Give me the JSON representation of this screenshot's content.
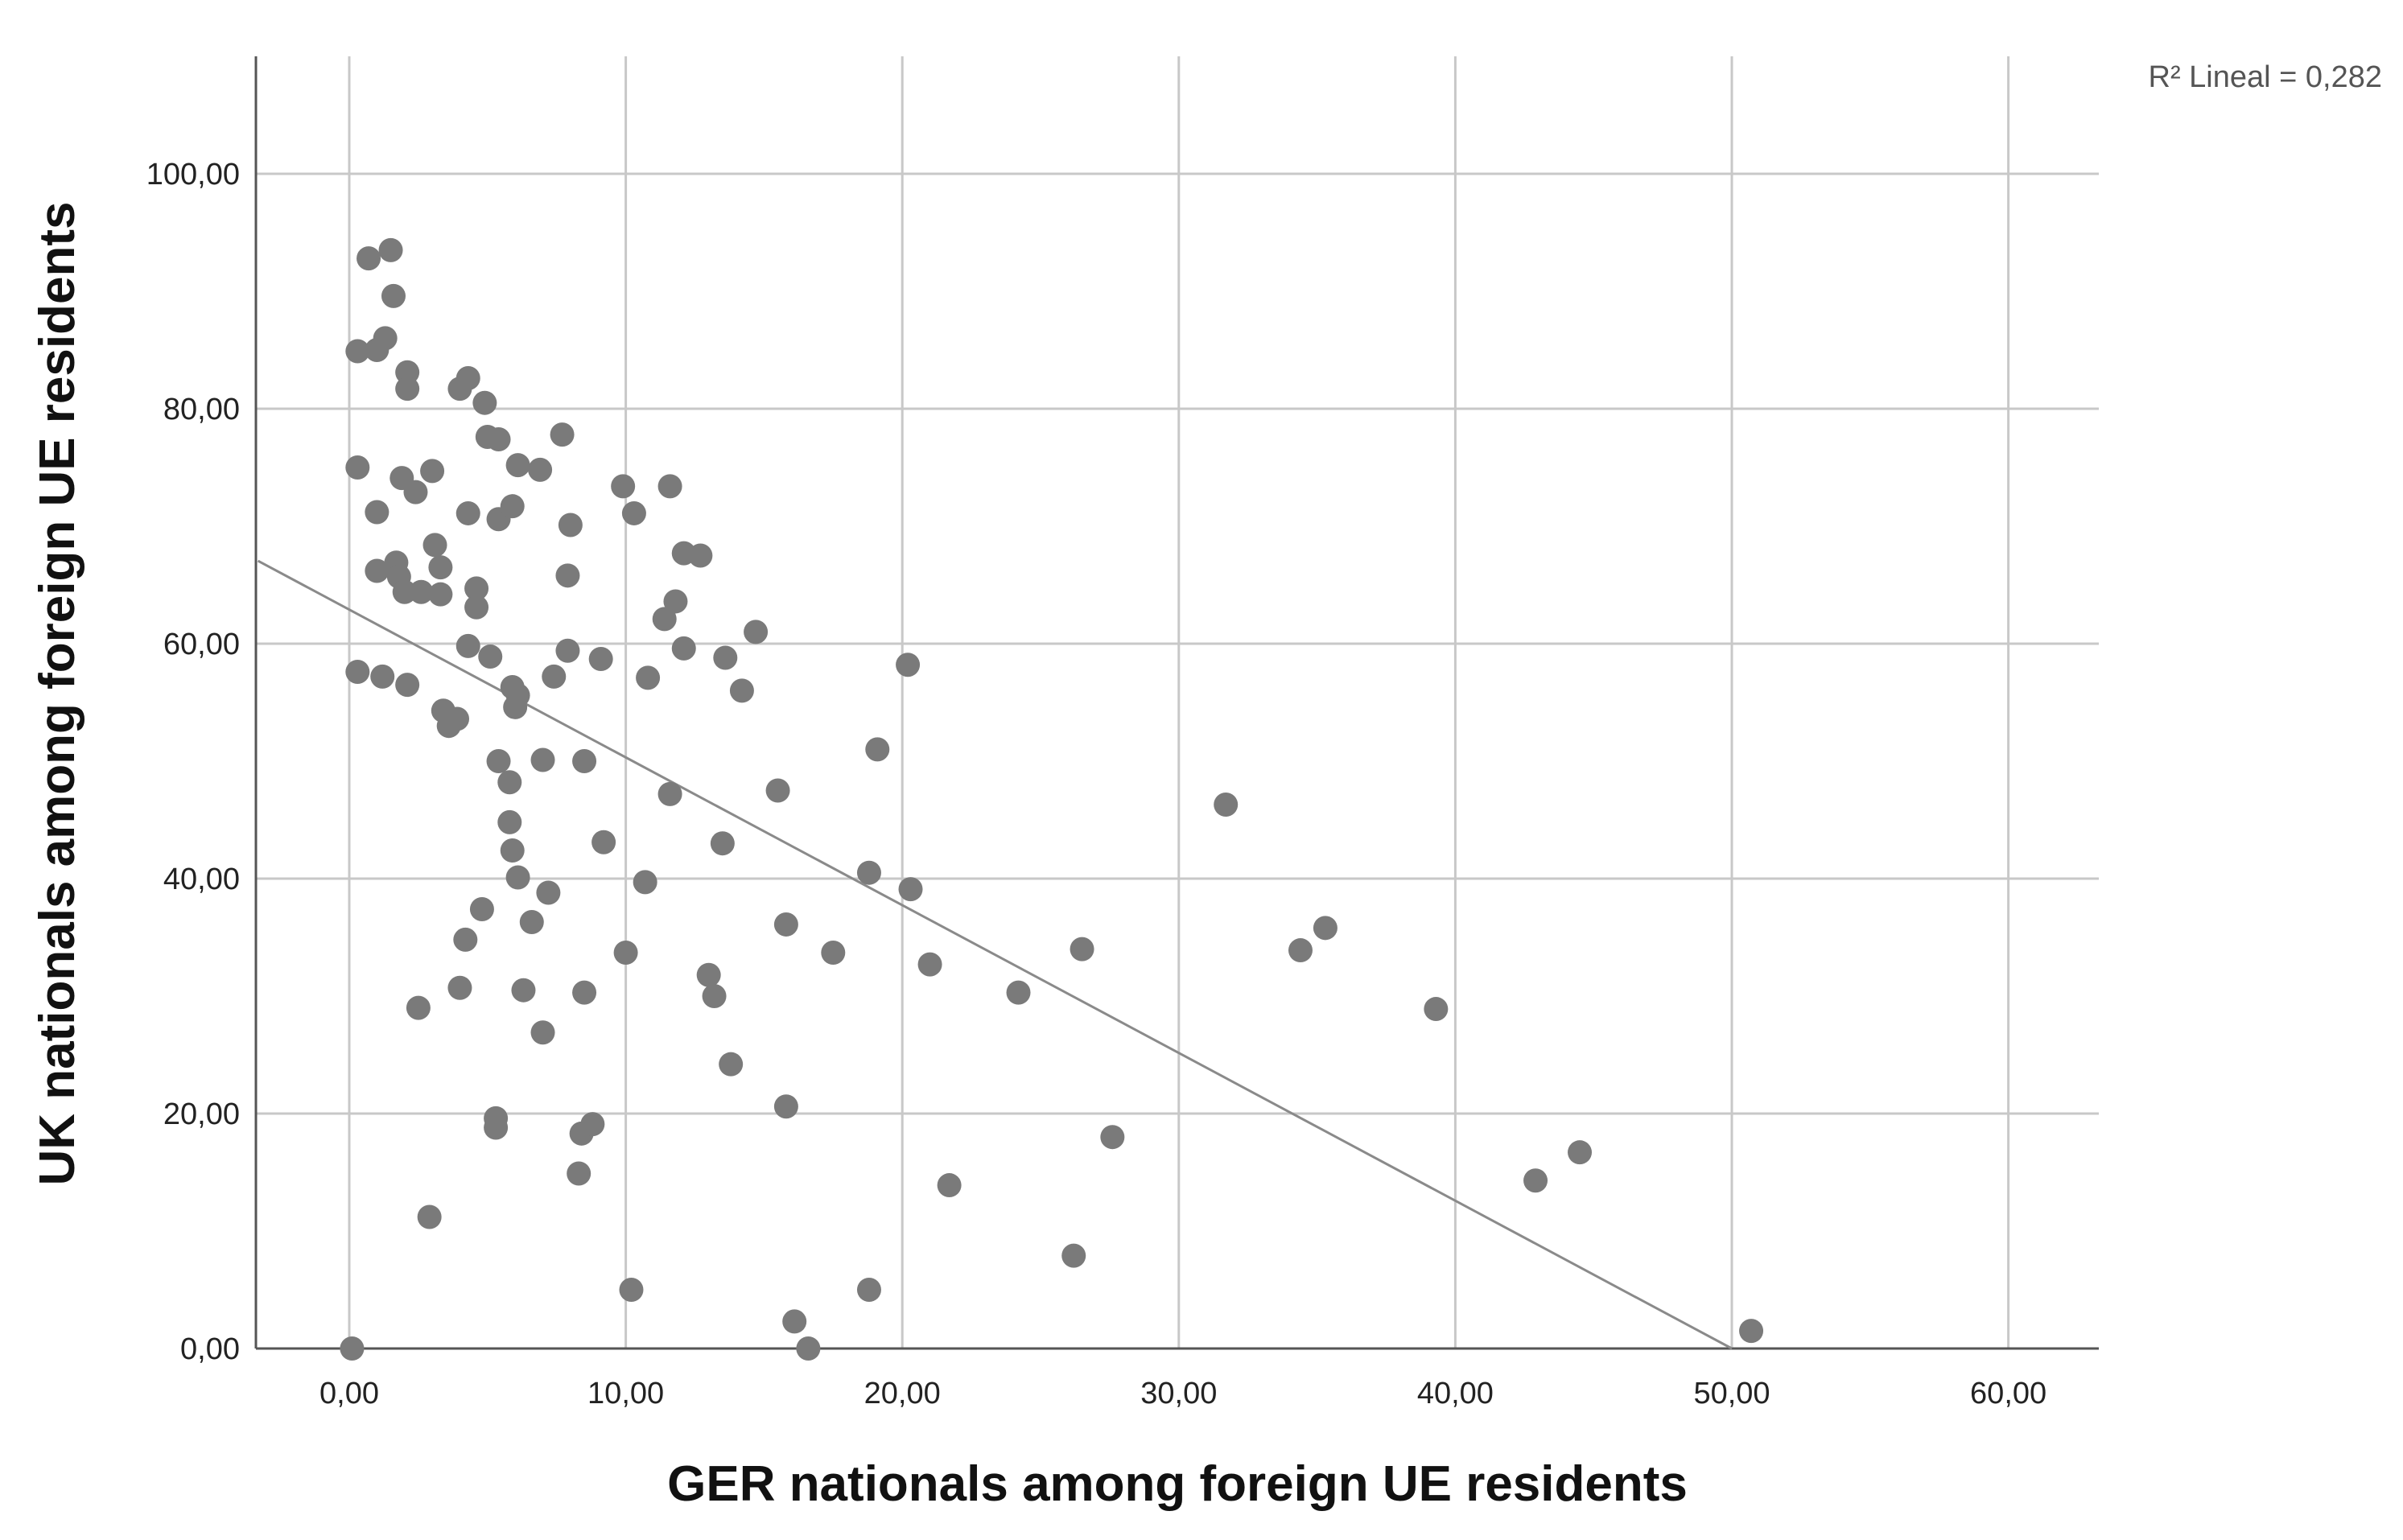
{
  "chart_data": {
    "type": "scatter",
    "xlabel": "GER nationals among foreign UE residents",
    "ylabel": "UK nationals among foreign UE residents",
    "xlim": [
      -3.3,
      63.3
    ],
    "ylim": [
      0,
      110
    ],
    "xticks": [
      0,
      10,
      20,
      30,
      40,
      50,
      60
    ],
    "xtick_labels": [
      "0,00",
      "10,00",
      "20,00",
      "30,00",
      "40,00",
      "50,00",
      "60,00"
    ],
    "yticks": [
      0,
      20,
      40,
      60,
      80,
      100
    ],
    "ytick_labels": [
      "0,00",
      "20,00",
      "40,00",
      "60,00",
      "80,00",
      "100,00"
    ],
    "grid": true,
    "point_color": "#7a7a7a",
    "line_color": "#8a8a8a",
    "fit_line": {
      "intercept": 62.9,
      "slope": -1.258,
      "label": "R² Lineal = 0,282"
    },
    "points": [
      {
        "x": 0.3,
        "y": 84.9
      },
      {
        "x": 0.7,
        "y": 92.8
      },
      {
        "x": 1.0,
        "y": 85.0
      },
      {
        "x": 1.5,
        "y": 93.5
      },
      {
        "x": 1.3,
        "y": 86.0
      },
      {
        "x": 1.6,
        "y": 89.6
      },
      {
        "x": 2.1,
        "y": 83.1
      },
      {
        "x": 2.1,
        "y": 81.7
      },
      {
        "x": 0.3,
        "y": 75.0
      },
      {
        "x": 1.9,
        "y": 74.1
      },
      {
        "x": 2.4,
        "y": 72.9
      },
      {
        "x": 1.0,
        "y": 71.2
      },
      {
        "x": 3.0,
        "y": 74.7
      },
      {
        "x": 1.0,
        "y": 66.2
      },
      {
        "x": 1.7,
        "y": 66.9
      },
      {
        "x": 1.8,
        "y": 65.7
      },
      {
        "x": 2.0,
        "y": 64.4
      },
      {
        "x": 2.6,
        "y": 64.4
      },
      {
        "x": 3.1,
        "y": 68.4
      },
      {
        "x": 3.3,
        "y": 66.5
      },
      {
        "x": 3.3,
        "y": 64.2
      },
      {
        "x": 0.3,
        "y": 57.6
      },
      {
        "x": 1.2,
        "y": 57.2
      },
      {
        "x": 2.1,
        "y": 56.5
      },
      {
        "x": 4.0,
        "y": 81.7
      },
      {
        "x": 4.3,
        "y": 82.6
      },
      {
        "x": 4.9,
        "y": 80.5
      },
      {
        "x": 5.0,
        "y": 77.6
      },
      {
        "x": 5.4,
        "y": 77.4
      },
      {
        "x": 4.3,
        "y": 71.1
      },
      {
        "x": 5.4,
        "y": 70.6
      },
      {
        "x": 5.9,
        "y": 71.7
      },
      {
        "x": 6.1,
        "y": 75.2
      },
      {
        "x": 6.9,
        "y": 74.8
      },
      {
        "x": 7.7,
        "y": 77.8
      },
      {
        "x": 8.0,
        "y": 70.1
      },
      {
        "x": 7.9,
        "y": 65.8
      },
      {
        "x": 4.6,
        "y": 64.7
      },
      {
        "x": 4.6,
        "y": 63.1
      },
      {
        "x": 4.3,
        "y": 59.8
      },
      {
        "x": 5.1,
        "y": 58.9
      },
      {
        "x": 3.4,
        "y": 54.3
      },
      {
        "x": 3.6,
        "y": 53.0
      },
      {
        "x": 3.9,
        "y": 53.6
      },
      {
        "x": 5.9,
        "y": 56.3
      },
      {
        "x": 6.1,
        "y": 55.6
      },
      {
        "x": 6.0,
        "y": 54.6
      },
      {
        "x": 5.4,
        "y": 50.0
      },
      {
        "x": 5.8,
        "y": 48.2
      },
      {
        "x": 7.0,
        "y": 50.1
      },
      {
        "x": 7.4,
        "y": 57.2
      },
      {
        "x": 7.9,
        "y": 59.4
      },
      {
        "x": 9.1,
        "y": 58.7
      },
      {
        "x": 8.5,
        "y": 50.0
      },
      {
        "x": 5.8,
        "y": 44.8
      },
      {
        "x": 5.9,
        "y": 42.4
      },
      {
        "x": 6.1,
        "y": 40.1
      },
      {
        "x": 9.2,
        "y": 43.1
      },
      {
        "x": 7.2,
        "y": 38.8
      },
      {
        "x": 4.8,
        "y": 37.4
      },
      {
        "x": 6.6,
        "y": 36.3
      },
      {
        "x": 4.2,
        "y": 34.8
      },
      {
        "x": 4.0,
        "y": 30.7
      },
      {
        "x": 6.3,
        "y": 30.5
      },
      {
        "x": 8.5,
        "y": 30.3
      },
      {
        "x": 7.0,
        "y": 26.9
      },
      {
        "x": 2.5,
        "y": 29.0
      },
      {
        "x": 5.3,
        "y": 19.6
      },
      {
        "x": 5.3,
        "y": 18.8
      },
      {
        "x": 8.4,
        "y": 18.3
      },
      {
        "x": 8.8,
        "y": 19.1
      },
      {
        "x": 8.3,
        "y": 14.9
      },
      {
        "x": 2.9,
        "y": 11.2
      },
      {
        "x": 0.1,
        "y": 0.0
      },
      {
        "x": 9.9,
        "y": 73.4
      },
      {
        "x": 10.3,
        "y": 71.1
      },
      {
        "x": 11.6,
        "y": 73.4
      },
      {
        "x": 12.1,
        "y": 67.7
      },
      {
        "x": 12.7,
        "y": 67.5
      },
      {
        "x": 11.8,
        "y": 63.6
      },
      {
        "x": 11.4,
        "y": 62.1
      },
      {
        "x": 12.1,
        "y": 59.6
      },
      {
        "x": 14.7,
        "y": 61.0
      },
      {
        "x": 13.6,
        "y": 58.8
      },
      {
        "x": 10.8,
        "y": 57.1
      },
      {
        "x": 14.2,
        "y": 56.0
      },
      {
        "x": 11.6,
        "y": 47.2
      },
      {
        "x": 15.5,
        "y": 47.5
      },
      {
        "x": 13.5,
        "y": 43.0
      },
      {
        "x": 10.7,
        "y": 39.7
      },
      {
        "x": 10.0,
        "y": 33.7
      },
      {
        "x": 13.0,
        "y": 31.8
      },
      {
        "x": 13.2,
        "y": 30.0
      },
      {
        "x": 13.8,
        "y": 24.2
      },
      {
        "x": 10.2,
        "y": 5.0
      },
      {
        "x": 15.8,
        "y": 36.1
      },
      {
        "x": 17.5,
        "y": 33.7
      },
      {
        "x": 15.8,
        "y": 20.6
      },
      {
        "x": 16.1,
        "y": 2.3
      },
      {
        "x": 16.6,
        "y": 0.0
      },
      {
        "x": 18.8,
        "y": 40.5
      },
      {
        "x": 19.1,
        "y": 51.0
      },
      {
        "x": 20.2,
        "y": 58.2
      },
      {
        "x": 20.3,
        "y": 39.1
      },
      {
        "x": 21.0,
        "y": 32.7
      },
      {
        "x": 21.7,
        "y": 13.9
      },
      {
        "x": 18.8,
        "y": 5.0
      },
      {
        "x": 24.2,
        "y": 30.3
      },
      {
        "x": 26.5,
        "y": 34.0
      },
      {
        "x": 27.6,
        "y": 18.0
      },
      {
        "x": 26.2,
        "y": 7.9
      },
      {
        "x": 31.7,
        "y": 46.3
      },
      {
        "x": 34.4,
        "y": 33.9
      },
      {
        "x": 35.3,
        "y": 35.8
      },
      {
        "x": 39.3,
        "y": 28.9
      },
      {
        "x": 42.9,
        "y": 14.3
      },
      {
        "x": 44.5,
        "y": 16.7
      },
      {
        "x": 50.7,
        "y": 1.5
      }
    ]
  }
}
